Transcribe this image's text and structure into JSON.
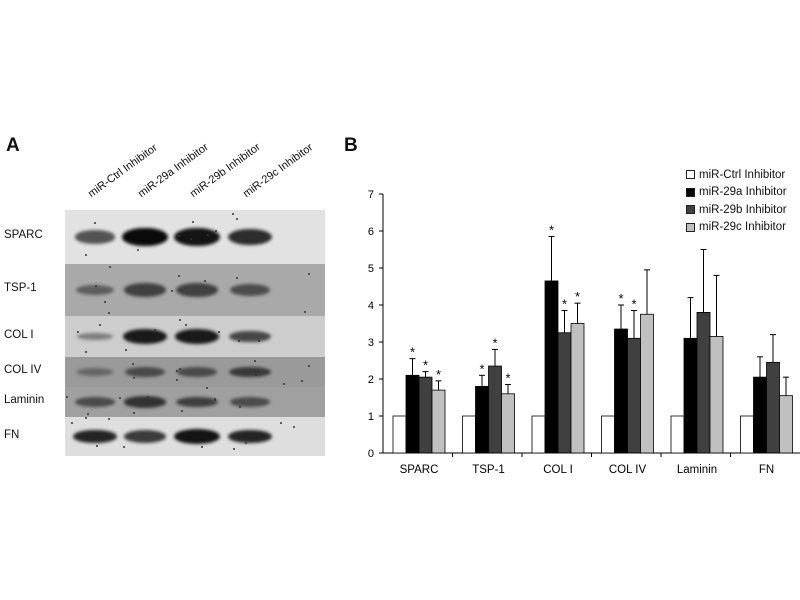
{
  "panel_a": {
    "letter": "A",
    "lanes": [
      "miR-Ctrl Inhibitor",
      "miR-29a Inhibitor",
      "miR-29b Inhibitor",
      "miR-29c Inhibitor"
    ],
    "rows": [
      {
        "label": "SPARC",
        "background": "#e2e2e2",
        "intensity": [
          0.55,
          1.0,
          0.95,
          0.8
        ]
      },
      {
        "label": "TSP-1",
        "background": "#a9a9a9",
        "intensity": [
          0.35,
          0.6,
          0.6,
          0.5
        ]
      },
      {
        "label": "COL I",
        "background": "#cdcdcd",
        "intensity": [
          0.15,
          0.9,
          0.9,
          0.6
        ]
      },
      {
        "label": "COL IV",
        "background": "#9a9a9a",
        "intensity": [
          0.2,
          0.5,
          0.5,
          0.65
        ]
      },
      {
        "label": "Laminin",
        "background": "#a0a0a0",
        "intensity": [
          0.5,
          0.7,
          0.6,
          0.5
        ]
      },
      {
        "label": "FN",
        "background": "#dedede",
        "intensity": [
          0.85,
          0.7,
          0.95,
          0.85
        ]
      }
    ]
  },
  "panel_b": {
    "letter": "B"
  },
  "chart_data": {
    "type": "bar",
    "categories": [
      "SPARC",
      "TSP-1",
      "COL I",
      "COL IV",
      "Laminin",
      "FN"
    ],
    "series": [
      {
        "name": "miR-Ctrl Inhibitor",
        "color": "#ffffff",
        "values": [
          1,
          1,
          1,
          1,
          1,
          1
        ],
        "errors": [
          0,
          0,
          0,
          0,
          0,
          0
        ],
        "significant": [
          false,
          false,
          false,
          false,
          false,
          false
        ]
      },
      {
        "name": "miR-29a Inhibitor",
        "color": "#000000",
        "values": [
          2.1,
          1.8,
          4.65,
          3.35,
          3.1,
          2.05
        ],
        "errors": [
          0.45,
          0.3,
          1.2,
          0.65,
          1.1,
          0.55
        ],
        "significant": [
          true,
          true,
          true,
          true,
          false,
          false
        ]
      },
      {
        "name": "miR-29b Inhibitor",
        "color": "#404040",
        "values": [
          2.05,
          2.35,
          3.25,
          3.1,
          3.8,
          2.45
        ],
        "errors": [
          0.15,
          0.45,
          0.6,
          0.75,
          1.7,
          0.75
        ],
        "significant": [
          true,
          true,
          true,
          true,
          false,
          false
        ]
      },
      {
        "name": "miR-29c Inhibitor",
        "color": "#c0c0c0",
        "values": [
          1.7,
          1.6,
          3.5,
          3.75,
          3.15,
          1.55
        ],
        "errors": [
          0.25,
          0.25,
          0.55,
          1.2,
          1.65,
          0.5
        ],
        "significant": [
          true,
          true,
          true,
          false,
          false,
          false
        ]
      }
    ],
    "significance_marker": "*",
    "yticks": [
      0,
      1,
      2,
      3,
      4,
      5,
      6,
      7
    ],
    "ylim": [
      0,
      7
    ],
    "grid": false,
    "legend_position": "top-right"
  }
}
